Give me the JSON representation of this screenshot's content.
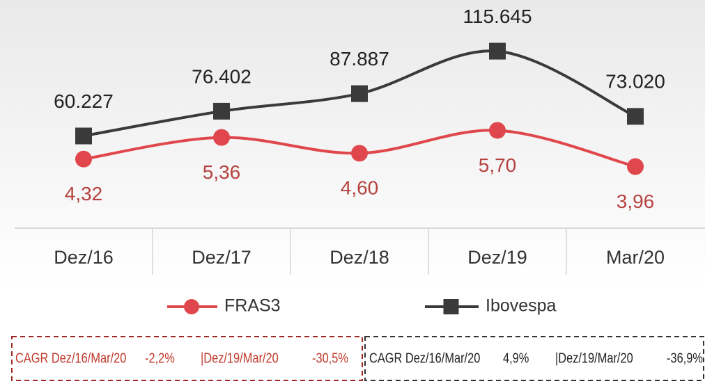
{
  "chart_data": {
    "type": "line",
    "categories": [
      "Dez/16",
      "Dez/17",
      "Dez/18",
      "Dez/19",
      "Mar/20"
    ],
    "series": [
      {
        "name": "FRAS3",
        "color": "#e0474c",
        "axis": "y2",
        "values": [
          4.32,
          5.36,
          4.6,
          5.7,
          3.96
        ],
        "value_labels": [
          "4,32",
          "5,36",
          "4,60",
          "5,70",
          "3,96"
        ]
      },
      {
        "name": "Ibovespa",
        "color": "#3a3a3a",
        "values": [
          60227,
          76402,
          87887,
          115645,
          73020
        ],
        "value_labels": [
          "60.227",
          "76.402",
          "87.887",
          "115.645",
          "73.020"
        ]
      }
    ],
    "ylim": [
      0,
      140000
    ],
    "y2lim": [
      1,
      11.3
    ],
    "legend": "bottom",
    "annotations": [
      {
        "color": "#c0392b",
        "items": [
          "CAGR Dez/16/Mar/20",
          "-2,2%",
          "|Dez/19/Mar/20",
          "-30,5%"
        ]
      },
      {
        "color": "#222222",
        "items": [
          "CAGR Dez/16/Mar/20",
          "4,9%",
          "|Dez/19/Mar/20",
          "-36,9%"
        ]
      }
    ]
  }
}
